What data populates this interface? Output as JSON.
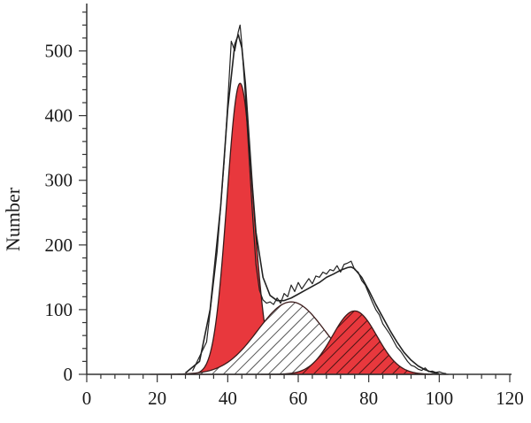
{
  "chart_data": {
    "type": "area",
    "title": "",
    "xlabel": "",
    "ylabel": "Number",
    "xlim": [
      0,
      120
    ],
    "ylim": [
      0,
      550
    ],
    "x_ticks": [
      0,
      20,
      40,
      60,
      80,
      100,
      120
    ],
    "y_ticks": [
      0,
      100,
      200,
      300,
      400,
      500
    ],
    "grid": false,
    "legend": "none",
    "colors": {
      "peak_fill": "#e8383d",
      "peak_stroke": "#3a1a1a",
      "line": "#222222",
      "hatch": "#555555"
    },
    "series": [
      {
        "type": "line",
        "style": "noisy-histogram",
        "x": [
          30,
          34,
          37,
          39,
          40,
          41,
          42,
          43,
          43.5,
          44,
          45,
          46,
          47,
          48,
          49,
          50,
          51,
          52,
          53,
          54,
          55,
          56,
          57,
          58,
          59,
          60,
          61,
          62,
          63,
          64,
          65,
          66,
          67,
          68,
          69,
          70,
          71,
          72,
          73,
          74,
          75,
          76,
          77,
          78,
          79,
          80,
          81,
          82,
          83,
          84,
          85,
          86,
          87,
          88,
          89,
          90,
          91,
          92,
          93,
          94,
          95,
          96,
          97,
          98,
          99,
          100,
          101,
          102
        ],
        "y": [
          5,
          50,
          190,
          330,
          420,
          515,
          500,
          530,
          540,
          510,
          430,
          340,
          250,
          170,
          130,
          115,
          110,
          112,
          108,
          118,
          110,
          125,
          120,
          138,
          128,
          142,
          132,
          140,
          148,
          140,
          152,
          150,
          158,
          155,
          162,
          160,
          168,
          158,
          170,
          172,
          175,
          162,
          158,
          145,
          138,
          125,
          112,
          100,
          92,
          78,
          70,
          62,
          52,
          42,
          36,
          28,
          20,
          14,
          12,
          8,
          6,
          10,
          4,
          5,
          3,
          4,
          2,
          1
        ]
      },
      {
        "type": "line",
        "style": "smooth-fit",
        "x": [
          28,
          32,
          35,
          38,
          40,
          42,
          43,
          44,
          45,
          46,
          47,
          48,
          50,
          52,
          54,
          56,
          58,
          60,
          62,
          64,
          66,
          68,
          70,
          72,
          74,
          75,
          76,
          78,
          80,
          82,
          84,
          86,
          88,
          90,
          92,
          94,
          96,
          98,
          100
        ],
        "y": [
          2,
          20,
          100,
          260,
          410,
          510,
          525,
          505,
          450,
          370,
          290,
          220,
          150,
          122,
          114,
          114,
          118,
          124,
          130,
          136,
          142,
          150,
          155,
          161,
          165,
          166,
          163,
          150,
          130,
          108,
          88,
          68,
          50,
          34,
          22,
          13,
          7,
          3,
          1
        ]
      },
      {
        "type": "area",
        "style": "solid-red",
        "peak_center": 43.5,
        "peak_height": 450,
        "peak_sigma": 3.7
      },
      {
        "type": "area",
        "style": "hatched",
        "peak_center": 58,
        "peak_height": 112,
        "peak_sigma": 9.5
      },
      {
        "type": "area",
        "style": "red-hatched",
        "peak_center": 76,
        "peak_height": 98,
        "peak_sigma": 6.3
      }
    ]
  }
}
